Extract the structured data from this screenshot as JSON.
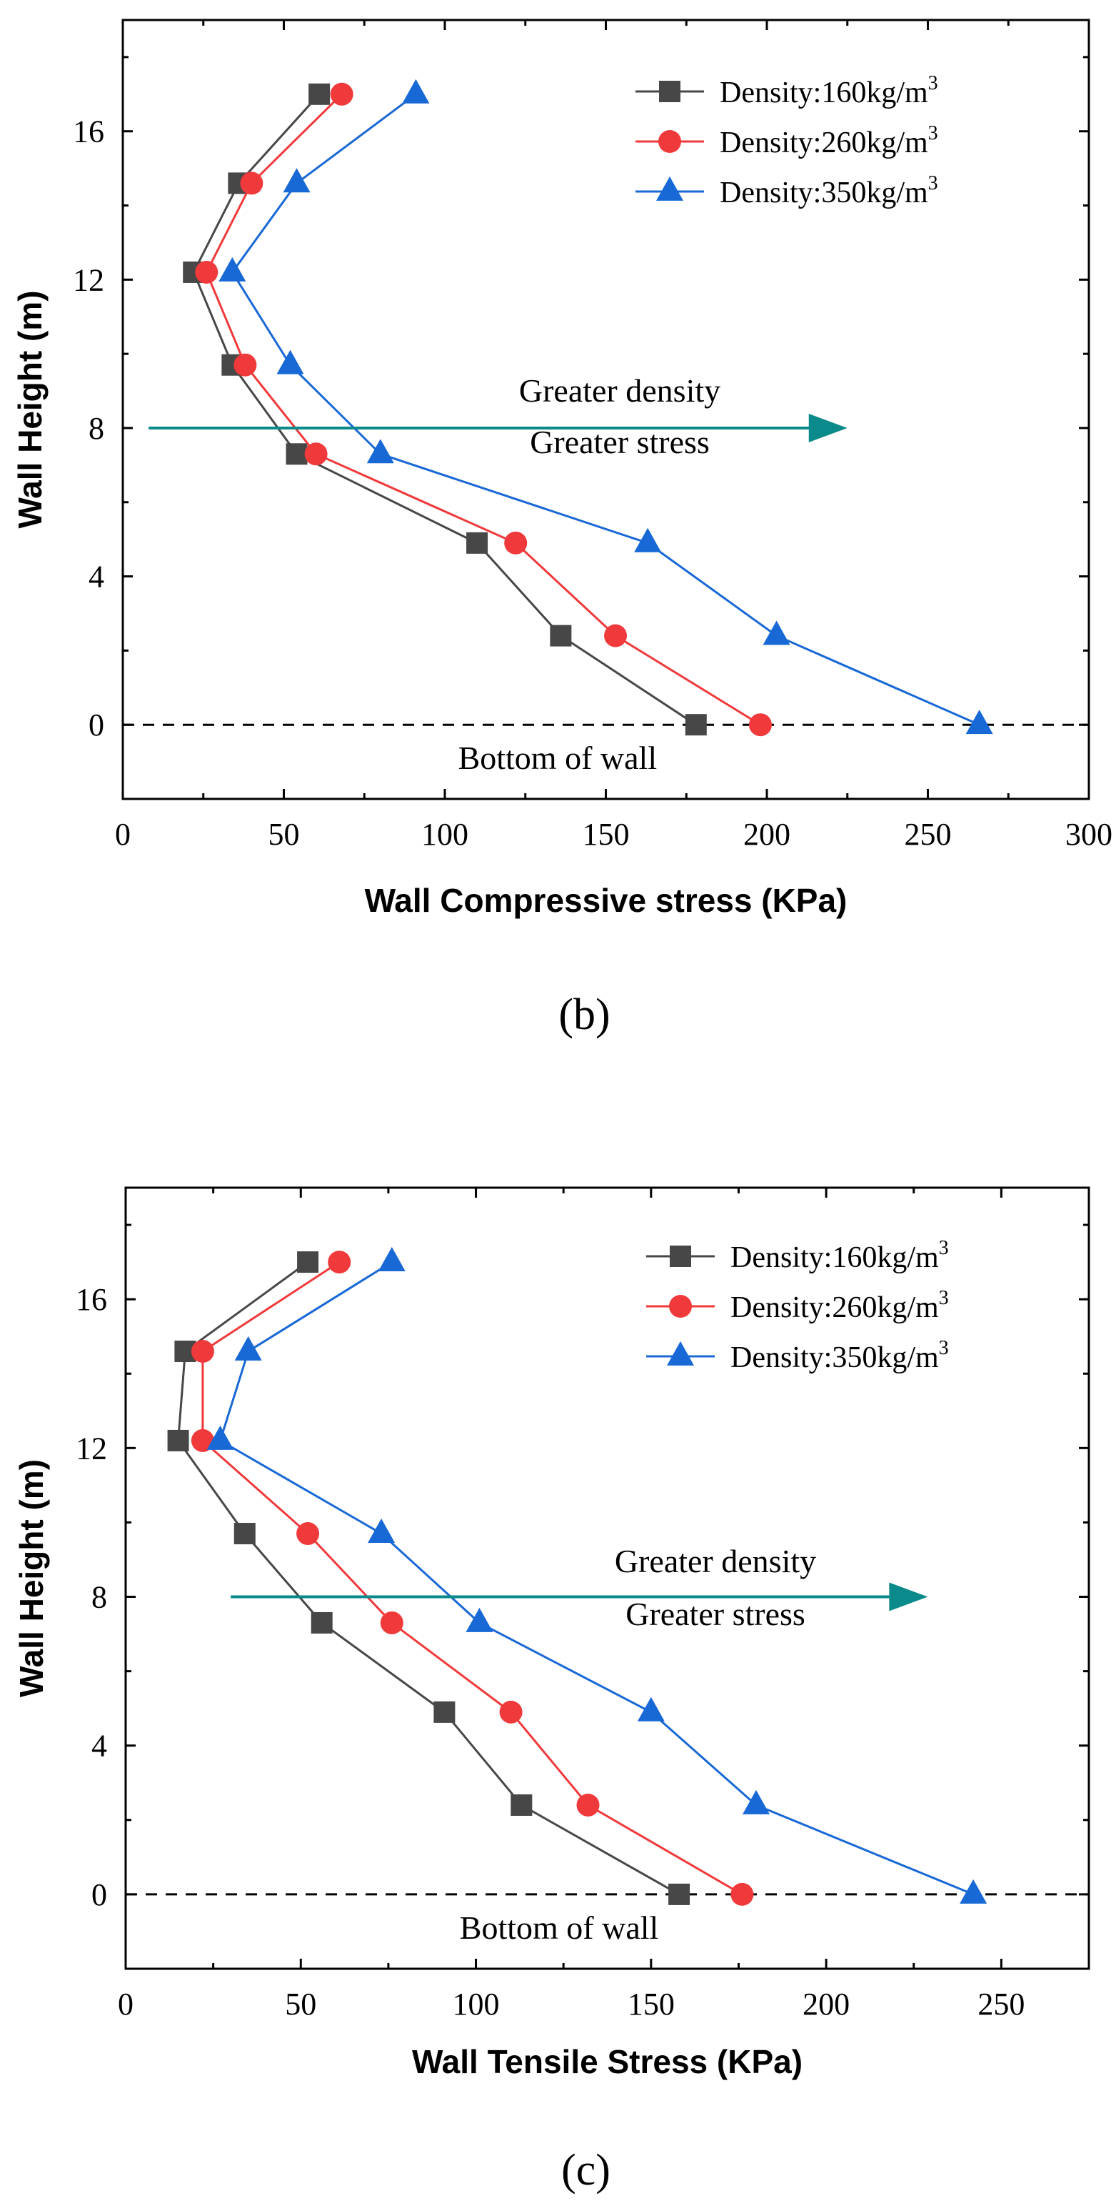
{
  "chart_data": [
    {
      "id": "b",
      "type": "line",
      "panel_label": "(b)",
      "title": "",
      "xlabel": "Wall Compressive stress (KPa)",
      "ylabel": "Wall Height (m)",
      "xlim": [
        0,
        300
      ],
      "ylim": [
        -2,
        19
      ],
      "xticks": [
        0,
        50,
        100,
        150,
        200,
        250,
        300
      ],
      "yticks": [
        0,
        4,
        8,
        12,
        16
      ],
      "grid": false,
      "legend_position": "top-right",
      "series": [
        {
          "name": "Density:160kg/m",
          "sup": "3",
          "color": "#474747",
          "marker": "square",
          "x": [
            178,
            136,
            110,
            54,
            34,
            22,
            36,
            61
          ],
          "y": [
            0,
            2.4,
            4.9,
            7.3,
            9.7,
            12.2,
            14.6,
            17
          ]
        },
        {
          "name": "Density:260kg/m",
          "sup": "3",
          "color": "#f0393b",
          "marker": "circle",
          "x": [
            198,
            153,
            122,
            60,
            38,
            26,
            40,
            68
          ],
          "y": [
            0,
            2.4,
            4.9,
            7.3,
            9.7,
            12.2,
            14.6,
            17
          ]
        },
        {
          "name": "Density:350kg/m",
          "sup": "3",
          "color": "#1868d6",
          "marker": "triangle",
          "x": [
            266,
            203,
            163,
            80,
            52,
            34,
            54,
            91
          ],
          "y": [
            0,
            2.4,
            4.9,
            7.3,
            9.7,
            12.2,
            14.6,
            17
          ]
        }
      ],
      "reference_line": {
        "y": 0,
        "label": "Bottom of wall"
      },
      "annotation": {
        "line1": "Greater density",
        "line2": "Greater stress",
        "arrow_from_x": 8,
        "arrow_to_x": 225,
        "arrow_y": 8,
        "color": "#0a8a8a"
      }
    },
    {
      "id": "c",
      "type": "line",
      "panel_label": "(c)",
      "title": "",
      "xlabel": "Wall Tensile Stress (KPa)",
      "ylabel": "Wall Height (m)",
      "xlim": [
        0,
        275
      ],
      "ylim": [
        -2,
        19
      ],
      "xticks": [
        0,
        50,
        100,
        150,
        200,
        250
      ],
      "yticks": [
        0,
        4,
        8,
        12,
        16
      ],
      "grid": false,
      "legend_position": "top-right",
      "series": [
        {
          "name": "Density:160kg/m",
          "sup": "3",
          "color": "#474747",
          "marker": "square",
          "x": [
            158,
            113,
            91,
            56,
            34,
            15,
            17,
            52
          ],
          "y": [
            0,
            2.4,
            4.9,
            7.3,
            9.7,
            12.2,
            14.6,
            17
          ]
        },
        {
          "name": "Density:260kg/m",
          "sup": "3",
          "color": "#f0393b",
          "marker": "circle",
          "x": [
            176,
            132,
            110,
            76,
            52,
            22,
            22,
            61
          ],
          "y": [
            0,
            2.4,
            4.9,
            7.3,
            9.7,
            12.2,
            14.6,
            17
          ]
        },
        {
          "name": "Density:350kg/m",
          "sup": "3",
          "color": "#1868d6",
          "marker": "triangle",
          "x": [
            242,
            180,
            150,
            101,
            73,
            27,
            35,
            76
          ],
          "y": [
            0,
            2.4,
            4.9,
            7.3,
            9.7,
            12.2,
            14.6,
            17
          ]
        }
      ],
      "reference_line": {
        "y": 0,
        "label": "Bottom of wall"
      },
      "annotation": {
        "line1": "Greater density",
        "line2": "Greater stress",
        "arrow_from_x": 30,
        "arrow_to_x": 229,
        "arrow_y": 8,
        "color": "#0a8a8a"
      }
    }
  ]
}
